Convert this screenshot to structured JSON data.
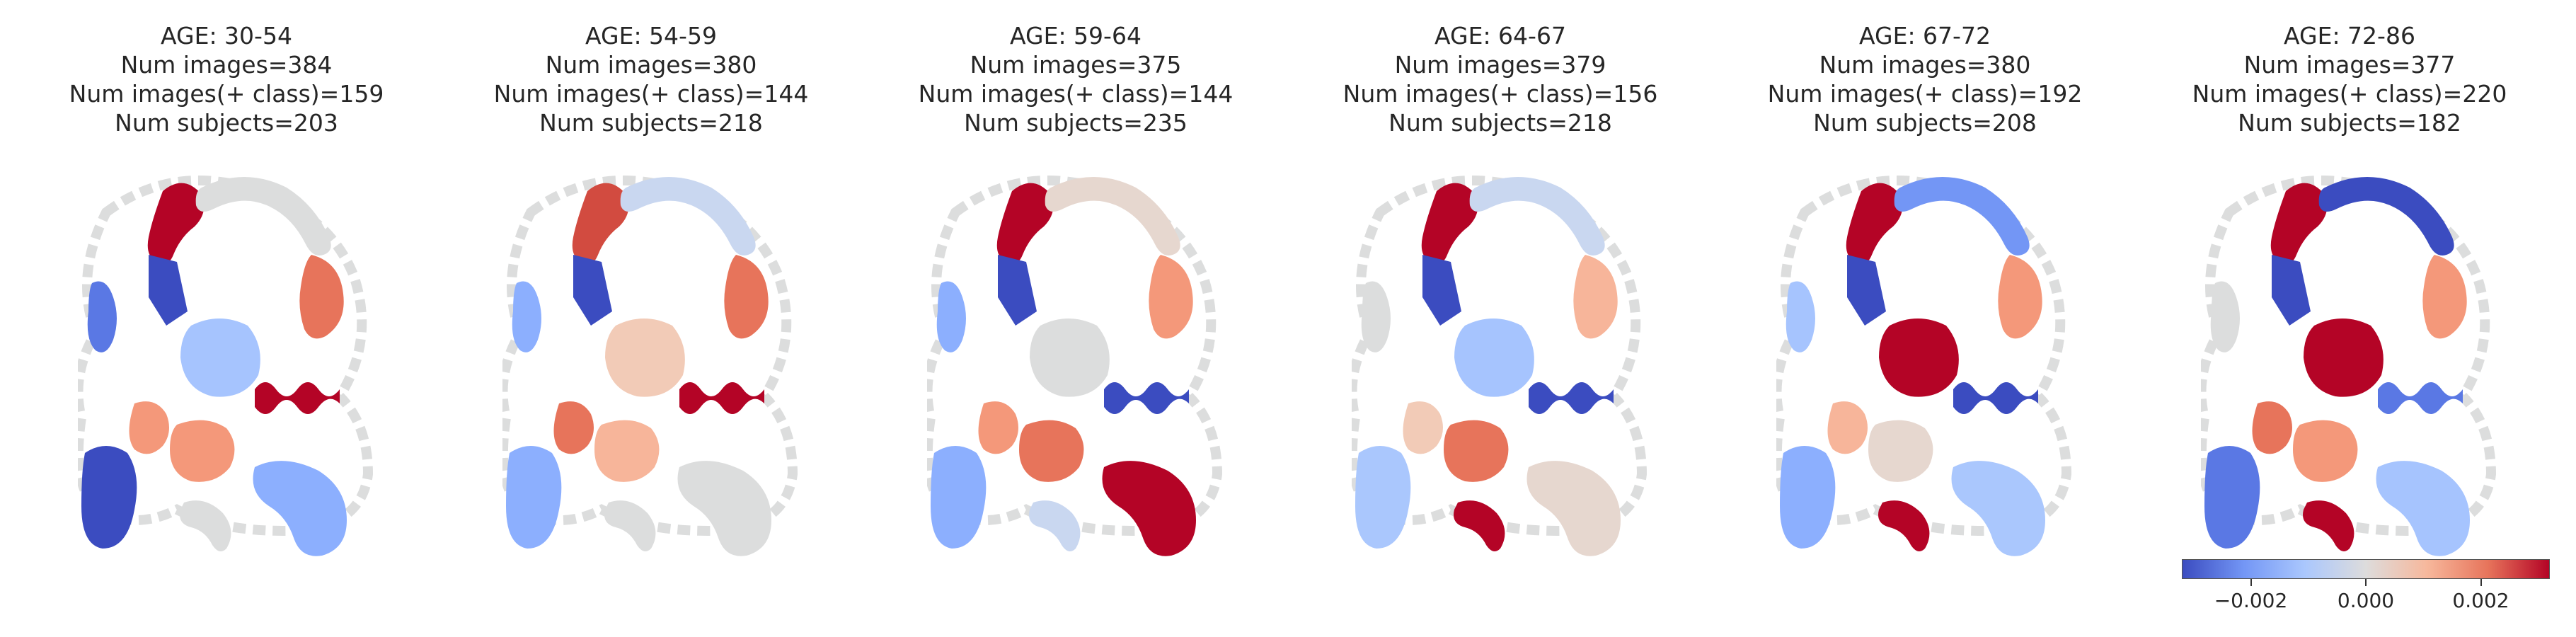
{
  "panels": [
    {
      "age": "AGE: 30-54",
      "images": "Num images=384",
      "pos_images": "Num images(+ class)=159",
      "subjects": "Num subjects=203",
      "colors": [
        "#b40426",
        "#dcdddd",
        "#e7745b",
        "#3b4cc0",
        "#a6c4fe",
        "#b40426",
        "#5a78e4",
        "#f4987a",
        "#3b4cc0",
        "#dcdddd",
        "#8caffe",
        "#f4987a"
      ]
    },
    {
      "age": "AGE: 54-59",
      "images": "Num images=380",
      "pos_images": "Num images(+ class)=144",
      "subjects": "Num subjects=218",
      "colors": [
        "#d24b40",
        "#c9d7f0",
        "#e7745b",
        "#3b4cc0",
        "#f2cbb7",
        "#b40426",
        "#8caffe",
        "#f7b59a",
        "#8caffe",
        "#dcdddd",
        "#dcdddd",
        "#e7745b"
      ]
    },
    {
      "age": "AGE: 59-64",
      "images": "Num images=375",
      "pos_images": "Num images(+ class)=144",
      "subjects": "Num subjects=235",
      "colors": [
        "#b40426",
        "#e6d7cf",
        "#f4987a",
        "#3b4cc0",
        "#dcdddd",
        "#3b4cc0",
        "#8caffe",
        "#e7745b",
        "#8caffe",
        "#c9d7f0",
        "#b40426",
        "#f4987a"
      ]
    },
    {
      "age": "AGE: 64-67",
      "images": "Num images=379",
      "pos_images": "Num images(+ class)=156",
      "subjects": "Num subjects=218",
      "colors": [
        "#b40426",
        "#c9d7f0",
        "#f7b59a",
        "#3b4cc0",
        "#a6c4fe",
        "#3b4cc0",
        "#dcdddd",
        "#e7745b",
        "#aac7fd",
        "#b40426",
        "#e6d7cf",
        "#f2cbb7"
      ]
    },
    {
      "age": "AGE: 67-72",
      "images": "Num images=380",
      "pos_images": "Num images(+ class)=192",
      "subjects": "Num subjects=208",
      "colors": [
        "#b40426",
        "#7396f5",
        "#f4987a",
        "#3b4cc0",
        "#b40426",
        "#3b4cc0",
        "#a6c4fe",
        "#e6d7cf",
        "#8caffe",
        "#b40426",
        "#aac7fd",
        "#f7b59a"
      ]
    },
    {
      "age": "AGE: 72-86",
      "images": "Num images=377",
      "pos_images": "Num images(+ class)=220",
      "subjects": "Num subjects=182",
      "colors": [
        "#b40426",
        "#3b4cc0",
        "#f4987a",
        "#3b4cc0",
        "#b40426",
        "#5a78e4",
        "#dcdddd",
        "#f4987a",
        "#5a78e4",
        "#b40426",
        "#a6c4fe",
        "#e7745b"
      ]
    }
  ],
  "colorbar": {
    "gradient": [
      "#3b4cc0",
      "#7396f5",
      "#aac7fd",
      "#dddcdc",
      "#f7b89c",
      "#e7745b",
      "#b40426"
    ],
    "range": [
      -0.0032,
      0.0032
    ],
    "ticks": [
      {
        "label": "−0.002",
        "value": -0.002
      },
      {
        "label": "0.000",
        "value": 0.0
      },
      {
        "label": "0.002",
        "value": 0.002
      }
    ]
  }
}
